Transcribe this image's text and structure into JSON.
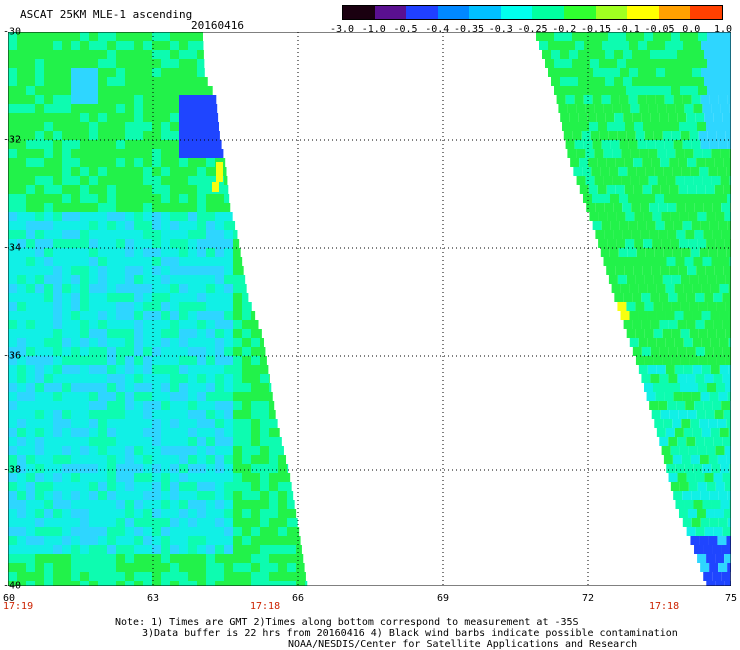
{
  "header": {
    "title": "ASCAT 25KM MLE-1 ascending",
    "date": "20160416"
  },
  "colorbar": {
    "labels": [
      "-3.0",
      "-1.0",
      "-0.5",
      "-0.4",
      "-0.35",
      "-0.3",
      "-0.25",
      "-0.2",
      "-0.15",
      "-0.1",
      "-0.05",
      "0.0",
      "1.0"
    ],
    "colors": [
      "#1a0010",
      "#5a1090",
      "#2040ff",
      "#0088ff",
      "#00c0ff",
      "#00ffee",
      "#00ffa0",
      "#30ff30",
      "#a0ff20",
      "#ffff00",
      "#ffa000",
      "#ff4000"
    ]
  },
  "map": {
    "lat_labels": [
      "-30",
      "-32",
      "-34",
      "-36",
      "-38",
      "-40"
    ],
    "lon_labels": [
      "60",
      "63",
      "66",
      "69",
      "72",
      "75"
    ],
    "swath_times": [
      "17:19",
      "17:18",
      "17:18"
    ],
    "palette": {
      "blue": "#1f45ff",
      "light_blue": "#2ed6ff",
      "cyan": "#11f0e6",
      "teal": "#0dfcb0",
      "green": "#22f24a",
      "yellow": "#f7ff10"
    }
  },
  "footer": {
    "line1": "Note: 1) Times are GMT 2)Times along bottom correspond to measurement at -35S",
    "line2": "3)Data buffer is 22 hrs from 20160416 4) Black wind barbs indicate possible contamination",
    "line3": "NOAA/NESDIS/Center for Satellite Applications and Research"
  }
}
